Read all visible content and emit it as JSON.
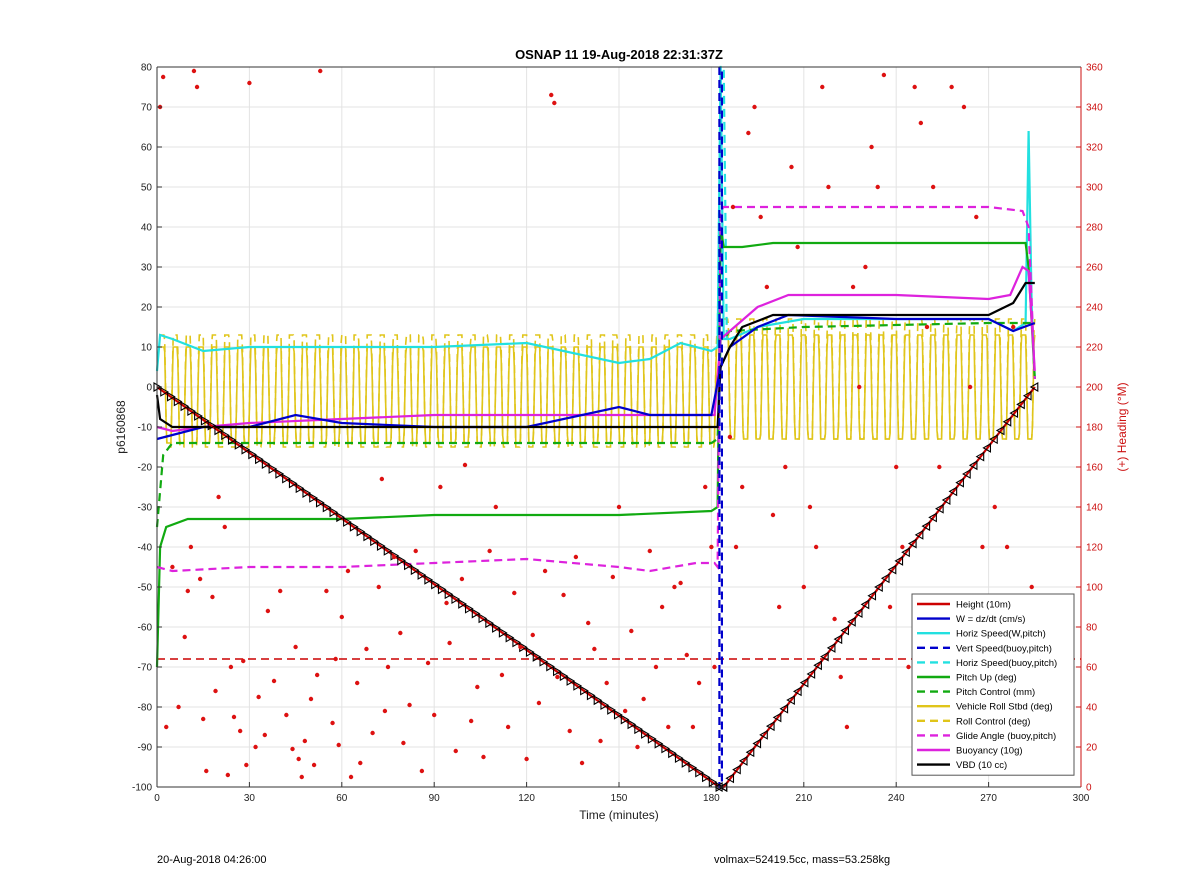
{
  "chart_data": {
    "type": "line",
    "title": "OSNAP 11 19-Aug-2018 22:31:37Z",
    "xlabel": "Time (minutes)",
    "ylabel": "p6160868",
    "ylabel_right": "(+) Heading (°M)",
    "xlim": [
      0,
      300
    ],
    "ylim": [
      -100,
      80
    ],
    "ylim_right": [
      0,
      360
    ],
    "xticks": [
      0,
      30,
      60,
      90,
      120,
      150,
      180,
      210,
      240,
      270,
      300
    ],
    "yticks": [
      -100,
      -90,
      -80,
      -70,
      -60,
      -50,
      -40,
      -30,
      -20,
      -10,
      0,
      10,
      20,
      30,
      40,
      50,
      60,
      70,
      80
    ],
    "yticks_right": [
      0,
      20,
      40,
      60,
      80,
      100,
      120,
      140,
      160,
      180,
      200,
      220,
      240,
      260,
      280,
      300,
      320,
      340,
      360
    ],
    "grid": true,
    "legend_position": "bottom-right",
    "colors": {
      "height": "#cc0000",
      "w": "#0000cc",
      "horiz": "#22e0e0",
      "pitch": "#11aa11",
      "roll": "#e0c51a",
      "glide": "#dd22dd",
      "vbd": "#000000",
      "heading": "#dd1111"
    },
    "series": [
      {
        "name": "Height (10m)",
        "style": "solid",
        "color": "#cc0000",
        "x": [
          0,
          182.5,
          184,
          285
        ],
        "y": [
          0,
          -100,
          -100,
          0
        ]
      },
      {
        "name": "W = dz/dt (cm/s)",
        "style": "solid",
        "color": "#0000cc",
        "x": [
          0,
          5,
          15,
          30,
          45,
          60,
          90,
          120,
          150,
          160,
          180,
          183,
          186,
          195,
          205,
          240,
          270,
          278,
          285
        ],
        "y": [
          -13,
          -12,
          -10,
          -10,
          -7,
          -9,
          -10,
          -10,
          -5,
          -7,
          -7,
          5,
          10,
          15,
          18,
          17,
          17,
          14,
          16
        ]
      },
      {
        "name": "Horiz Speed(W,pitch)",
        "style": "solid",
        "color": "#22e0e0",
        "x": [
          0,
          1,
          5,
          15,
          30,
          60,
          90,
          120,
          150,
          160,
          170,
          180,
          182,
          183,
          184,
          186,
          195,
          210,
          240,
          270,
          278,
          282,
          283,
          284,
          285
        ],
        "y": [
          4,
          13,
          12,
          9,
          10,
          10,
          10,
          11,
          6,
          7,
          11,
          9,
          10,
          80,
          12,
          12,
          15,
          17,
          17,
          17,
          14,
          16,
          64,
          20,
          2
        ]
      },
      {
        "name": "Vert Speed(buoy,pitch)",
        "style": "dashed",
        "color": "#0000cc",
        "x": [
          182.6,
          182.6,
          183.4,
          183.4
        ],
        "y": [
          80,
          -100,
          -100,
          80
        ]
      },
      {
        "name": "Horiz Speed(buoy,pitch)",
        "style": "dashed",
        "color": "#22e0e0",
        "x": [
          182,
          183,
          184,
          185
        ],
        "y": [
          10,
          80,
          80,
          12
        ]
      },
      {
        "name": "Pitch Up (deg)",
        "style": "solid",
        "color": "#11aa11",
        "x": [
          0,
          1,
          3,
          10,
          30,
          60,
          90,
          120,
          150,
          180,
          182,
          183,
          184,
          190,
          200,
          240,
          270,
          282,
          283,
          285
        ],
        "y": [
          -70,
          -40,
          -35,
          -33,
          -33,
          -33,
          -32,
          -32,
          -32,
          -31,
          -30,
          40,
          35,
          35,
          36,
          36,
          36,
          36,
          30,
          2
        ]
      },
      {
        "name": "Pitch Control (mm)",
        "style": "dashed",
        "color": "#11aa11",
        "x": [
          0,
          2,
          5,
          60,
          120,
          180,
          182,
          183,
          184,
          186,
          210,
          270,
          285
        ],
        "y": [
          -35,
          -17,
          -14,
          -14,
          -14,
          -14,
          -13,
          12,
          12,
          14,
          15,
          16,
          16
        ]
      },
      {
        "name": "Vehicle Roll Stbd (deg)",
        "style": "solid",
        "color": "#e0c51a",
        "kind": "oscillation",
        "segments": [
          {
            "x0": 1,
            "x1": 182,
            "center": -2,
            "amplitude": 12,
            "period": 4.2
          },
          {
            "x0": 184,
            "x1": 285,
            "center": 0,
            "amplitude": 13,
            "period": 4.2
          }
        ]
      },
      {
        "name": "Roll Control (deg)",
        "style": "dashed",
        "color": "#e0c51a",
        "kind": "oscillation",
        "segments": [
          {
            "x0": 1,
            "x1": 182,
            "center": -1,
            "amplitude": 14,
            "period": 4.2
          },
          {
            "x0": 184,
            "x1": 285,
            "center": 2,
            "amplitude": 15,
            "period": 4.2
          }
        ]
      },
      {
        "name": "Glide Angle (buoy,pitch)",
        "style": "dashed",
        "color": "#dd22dd",
        "x": [
          0,
          5,
          30,
          60,
          90,
          120,
          150,
          160,
          175,
          181,
          182,
          183,
          184,
          200,
          240,
          270,
          281,
          283,
          285
        ],
        "y": [
          -45,
          -46,
          -45,
          -45,
          -44,
          -43,
          -45,
          -46,
          -44,
          -44,
          -45,
          44,
          45,
          45,
          45,
          45,
          44,
          40,
          2
        ]
      },
      {
        "name": "Buoyancy (10g)",
        "style": "solid",
        "color": "#dd22dd",
        "x": [
          0,
          5,
          15,
          30,
          60,
          90,
          120,
          150,
          181,
          183,
          186,
          195,
          205,
          240,
          270,
          277,
          281,
          283,
          285
        ],
        "y": [
          -10,
          -11,
          -10,
          -9,
          -8,
          -7,
          -7,
          -7,
          -7,
          12,
          14,
          20,
          23,
          23,
          22,
          23,
          30,
          29,
          4
        ]
      },
      {
        "name": "VBD (10 cc)",
        "style": "solid",
        "color": "#000000",
        "x": [
          0,
          1,
          5,
          182,
          183,
          186,
          190,
          200,
          210,
          240,
          270,
          278,
          282,
          285
        ],
        "y": [
          -2,
          -8,
          -10,
          -10,
          5,
          10,
          15,
          18,
          18,
          18,
          18,
          21,
          26,
          26
        ]
      }
    ],
    "reference_lines": [
      {
        "orientation": "horizontal",
        "axis": "left",
        "y": -68,
        "style": "dashed",
        "color": "#cc0000"
      }
    ],
    "heading_points": {
      "axis": "right",
      "marker": "dot",
      "color": "#dd1111",
      "x": [
        1,
        2,
        3,
        5,
        7,
        9,
        10,
        11,
        12,
        13,
        14,
        15,
        16,
        18,
        19,
        20,
        22,
        23,
        24,
        25,
        27,
        28,
        29,
        30,
        32,
        33,
        35,
        36,
        38,
        40,
        42,
        44,
        45,
        46,
        47,
        48,
        50,
        51,
        52,
        53,
        55,
        57,
        58,
        59,
        60,
        62,
        63,
        65,
        66,
        68,
        70,
        72,
        73,
        74,
        75,
        77,
        79,
        80,
        82,
        84,
        86,
        88,
        90,
        92,
        94,
        95,
        97,
        99,
        100,
        102,
        104,
        106,
        108,
        110,
        112,
        114,
        116,
        118,
        120,
        122,
        124,
        126,
        128,
        129,
        130,
        132,
        134,
        136,
        138,
        140,
        142,
        144,
        146,
        148,
        150,
        152,
        154,
        156,
        158,
        160,
        162,
        164,
        166,
        168,
        170,
        172,
        174,
        176,
        178,
        180,
        181,
        186,
        187,
        188,
        190,
        192,
        194,
        196,
        198,
        200,
        202,
        204,
        206,
        208,
        210,
        212,
        214,
        216,
        218,
        220,
        222,
        224,
        226,
        228,
        230,
        232,
        234,
        236,
        238,
        240,
        242,
        244,
        246,
        248,
        250,
        252,
        254,
        256,
        258,
        260,
        262,
        264,
        266,
        268,
        270,
        272,
        274,
        276,
        278,
        280,
        282,
        284
      ],
      "y": [
        340,
        355,
        30,
        110,
        40,
        75,
        98,
        120,
        358,
        350,
        104,
        34,
        8,
        95,
        48,
        145,
        130,
        6,
        60,
        35,
        28,
        63,
        11,
        352,
        20,
        45,
        26,
        88,
        53,
        98,
        36,
        19,
        70,
        14,
        5,
        23,
        44,
        11,
        56,
        358,
        98,
        32,
        64,
        21,
        85,
        108,
        5,
        52,
        12,
        69,
        27,
        100,
        154,
        38,
        60,
        115,
        77,
        22,
        41,
        118,
        8,
        62,
        36,
        150,
        92,
        72,
        18,
        104,
        161,
        33,
        50,
        15,
        118,
        140,
        56,
        30,
        97,
        70,
        14,
        76,
        42,
        108,
        346,
        342,
        55,
        96,
        28,
        115,
        12,
        82,
        69,
        23,
        52,
        105,
        140,
        38,
        78,
        20,
        44,
        118,
        60,
        90,
        30,
        100,
        102,
        66,
        30,
        52,
        150,
        120,
        60,
        175,
        290,
        120,
        150,
        327,
        340,
        285,
        250,
        136,
        90,
        160,
        310,
        270,
        100,
        140,
        120,
        350,
        300,
        84,
        55,
        30,
        250,
        200,
        260,
        320,
        300,
        356,
        90,
        160,
        120,
        60,
        350,
        332,
        230,
        300,
        160,
        66,
        350,
        58,
        340,
        200,
        285,
        120,
        45,
        140,
        80,
        120,
        230,
        70,
        85,
        100
      ]
    },
    "legend": [
      "Height (10m)",
      "W = dz/dt (cm/s)",
      "Horiz Speed(W,pitch)",
      "Vert Speed(buoy,pitch)",
      "Horiz Speed(buoy,pitch)",
      "Pitch Up (deg)",
      "Pitch Control (mm)",
      "Vehicle Roll Stbd (deg)",
      "Roll Control (deg)",
      "Glide Angle (buoy,pitch)",
      "Buoyancy (10g)",
      "VBD (10 cc)"
    ]
  },
  "footer": {
    "left": "20-Aug-2018 04:26:00",
    "right": "volmax=52419.5cc, mass=53.258kg"
  }
}
